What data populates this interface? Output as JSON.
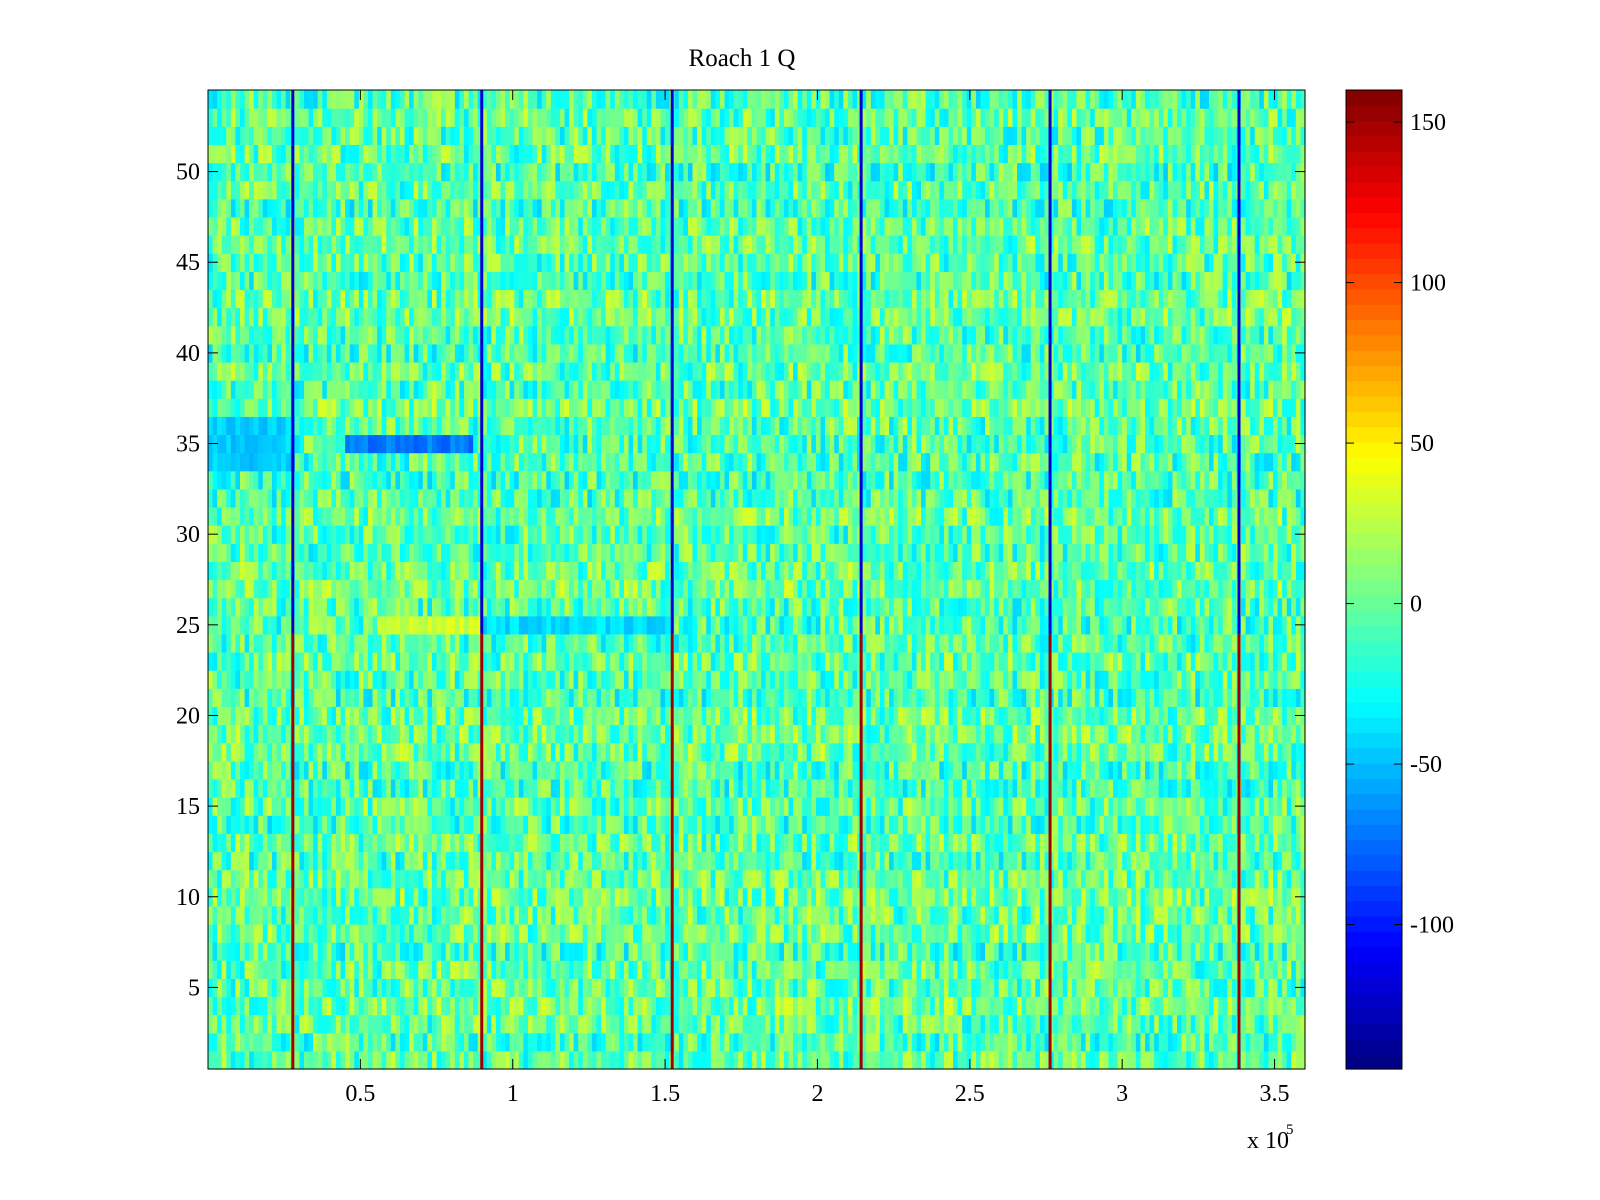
{
  "chart_data": {
    "type": "heatmap",
    "title": "Roach 1 Q",
    "xlabel": "",
    "ylabel": "",
    "x_multiplier_label": "x 10",
    "x_multiplier_exponent": "5",
    "x_range": [
      0,
      360000
    ],
    "y_range": [
      0.5,
      54.5
    ],
    "rows": 54,
    "x_tick_values": [
      0.5,
      1,
      1.5,
      2,
      2.5,
      3,
      3.5
    ],
    "x_tick_labels": [
      "0.5",
      "1",
      "1.5",
      "2",
      "2.5",
      "3",
      "3.5"
    ],
    "y_tick_values": [
      5,
      10,
      15,
      20,
      25,
      30,
      35,
      40,
      45,
      50
    ],
    "y_tick_labels": [
      "5",
      "10",
      "15",
      "20",
      "25",
      "30",
      "35",
      "40",
      "45",
      "50"
    ],
    "colormap": "jet",
    "clim": [
      -145,
      160
    ],
    "colorbar_tick_values": [
      -100,
      -50,
      0,
      50,
      100,
      150
    ],
    "colorbar_tick_labels": [
      "-100",
      "-50",
      "0",
      "50",
      "100",
      "150"
    ],
    "typical_value_range": [
      -40,
      30
    ],
    "background_mean": -5,
    "spike_columns_x": [
      28000,
      90000,
      152500,
      214500,
      276500,
      338500
    ],
    "spike_values": {
      "upper_rows": {
        "rows": [
          25,
          54
        ],
        "value": -120
      },
      "lower_rows": {
        "rows": [
          1,
          24
        ],
        "value": 150
      }
    },
    "anomalies": [
      {
        "rows": [
          35,
          35
        ],
        "x_range": [
          0,
          28000
        ],
        "value": -80
      },
      {
        "rows": [
          34,
          36
        ],
        "x_range": [
          0,
          28000
        ],
        "value": -45
      },
      {
        "rows": [
          35,
          35
        ],
        "x_range": [
          45000,
          87000
        ],
        "value": -70
      },
      {
        "rows": [
          25,
          25
        ],
        "x_range": [
          55000,
          90000
        ],
        "value": 30
      },
      {
        "rows": [
          25,
          25
        ],
        "x_range": [
          90000,
          152500
        ],
        "value": -40
      }
    ]
  }
}
